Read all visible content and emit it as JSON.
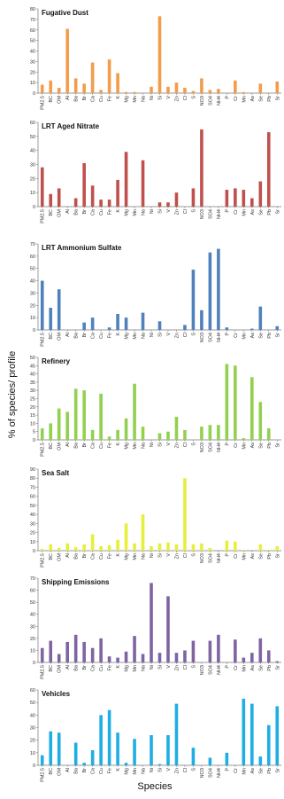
{
  "ylabel": "% of species/ profile",
  "xlabel": "Species",
  "chart_data": [
    {
      "type": "bar",
      "title": "Fugative Dust",
      "color": "#f39c4a",
      "ylim": [
        0,
        80
      ],
      "yticks": [
        0,
        10,
        20,
        30,
        40,
        50,
        60,
        70,
        80
      ],
      "categories": [
        "PM2.5",
        "BC",
        "OM",
        "Al",
        "Ba",
        "Br",
        "Ca",
        "Cu",
        "Fe",
        "K",
        "Mg",
        "Mn",
        "Na",
        "Ni",
        "Si",
        "V",
        "Zn",
        "Cl",
        "S",
        "NO3",
        "SO4",
        "NH4",
        "P",
        "Cr",
        "Mn",
        "As",
        "Se",
        "Pb",
        "Sr"
      ],
      "values": [
        8,
        12,
        5,
        61,
        14,
        9,
        29,
        3,
        32,
        19,
        1,
        1,
        0,
        6,
        73,
        6,
        10,
        5,
        2,
        14,
        3,
        4,
        0,
        12,
        1,
        0,
        9,
        0,
        11
      ]
    },
    {
      "type": "bar",
      "title": "LRT Aged Nitrate",
      "color": "#c0504d",
      "ylim": [
        0,
        60
      ],
      "yticks": [
        0,
        10,
        20,
        30,
        40,
        50,
        60
      ],
      "categories": [
        "PM2.5",
        "BC",
        "OM",
        "Al",
        "Ba",
        "Br",
        "Ca",
        "Cu",
        "Fe",
        "K",
        "Mg",
        "Mn",
        "Na",
        "Ni",
        "Si",
        "V",
        "Zn",
        "Cl",
        "S",
        "NO3",
        "SO4",
        "NH4",
        "P",
        "Cr",
        "Mn",
        "As",
        "Se",
        "Pb",
        "Sr"
      ],
      "values": [
        28,
        9,
        13,
        0,
        6,
        31,
        15,
        5,
        5,
        19,
        39,
        0,
        33,
        0,
        3,
        3,
        10,
        0,
        13,
        55,
        0,
        0,
        12,
        13,
        12,
        6,
        18,
        53,
        0
      ]
    },
    {
      "type": "bar",
      "title": "LRT Ammonium Sulfate",
      "color": "#4f81bd",
      "ylim": [
        0,
        70
      ],
      "yticks": [
        0,
        10,
        20,
        30,
        40,
        50,
        60,
        70
      ],
      "categories": [
        "PM2.5",
        "BC",
        "OM",
        "Al",
        "Ba",
        "Br",
        "Ca",
        "Cu",
        "Fe",
        "K",
        "Mg",
        "Mn",
        "Na",
        "Ni",
        "Si",
        "V",
        "Zn",
        "Cl",
        "S",
        "NO3",
        "SO4",
        "NH4",
        "P",
        "Cr",
        "Mn",
        "As",
        "Se",
        "Pb",
        "Sr"
      ],
      "values": [
        40,
        18,
        33,
        0,
        0,
        6,
        10,
        0,
        2,
        13,
        10,
        0,
        14,
        0,
        7,
        0,
        0,
        4,
        49,
        16,
        63,
        66,
        2,
        0,
        0,
        1,
        19,
        0,
        3
      ]
    },
    {
      "type": "bar",
      "title": "Refinery",
      "color": "#92d050",
      "ylim": [
        0,
        50
      ],
      "yticks": [
        0,
        5,
        10,
        15,
        20,
        25,
        30,
        35,
        40,
        45,
        50
      ],
      "categories": [
        "PM2.5",
        "BC",
        "OM",
        "Al",
        "Ba",
        "Br",
        "Ca",
        "Cu",
        "Fe",
        "K",
        "Mg",
        "Mn",
        "Na",
        "Ni",
        "Si",
        "V",
        "Zn",
        "Cl",
        "S",
        "NO3",
        "SO4",
        "NH4",
        "P",
        "Cr",
        "Mn",
        "As",
        "Se",
        "Pb",
        "Sr"
      ],
      "values": [
        7,
        10,
        19,
        17,
        31,
        30,
        6,
        28,
        2,
        6,
        13,
        34,
        8,
        0,
        4,
        5,
        14,
        6,
        0,
        8,
        9,
        9,
        46,
        45,
        1,
        38,
        23,
        7,
        0
      ]
    },
    {
      "type": "bar",
      "title": "Sea Salt",
      "color": "#e6ef3a",
      "ylim": [
        0,
        90
      ],
      "yticks": [
        0,
        10,
        20,
        30,
        40,
        50,
        60,
        70,
        80,
        90
      ],
      "categories": [
        "PM2.5",
        "BC",
        "OM",
        "Al",
        "Ba",
        "Br",
        "Ca",
        "Cu",
        "Fe",
        "K",
        "Mg",
        "Mn",
        "Na",
        "Ni",
        "Si",
        "V",
        "Zn",
        "Cl",
        "S",
        "NO3",
        "SO4",
        "NH4",
        "P",
        "Cr",
        "Mn",
        "As",
        "Se",
        "Pb",
        "Sr"
      ],
      "values": [
        2,
        7,
        3,
        8,
        4,
        7,
        18,
        5,
        6,
        12,
        30,
        8,
        40,
        5,
        8,
        9,
        7,
        80,
        7,
        8,
        3,
        0,
        11,
        10,
        1,
        0,
        7,
        1,
        5
      ]
    },
    {
      "type": "bar",
      "title": "Shipping Emissions",
      "color": "#8064a2",
      "ylim": [
        0,
        70
      ],
      "yticks": [
        0,
        10,
        20,
        30,
        40,
        50,
        60,
        70
      ],
      "categories": [
        "PM2.5",
        "BC",
        "OM",
        "Al",
        "Ba",
        "Br",
        "Ca",
        "Cu",
        "Fe",
        "K",
        "Mg",
        "Mn",
        "Na",
        "Ni",
        "Si",
        "V",
        "Zn",
        "Cl",
        "S",
        "NO3",
        "SO4",
        "NH4",
        "P",
        "Cr",
        "Mn",
        "As",
        "Se",
        "Pb",
        "Sr"
      ],
      "values": [
        12,
        18,
        7,
        17,
        23,
        17,
        12,
        20,
        5,
        4,
        9,
        22,
        7,
        66,
        8,
        55,
        8,
        10,
        18,
        0,
        18,
        23,
        0,
        19,
        4,
        8,
        20,
        10,
        1
      ]
    },
    {
      "type": "bar",
      "title": "Vehicles",
      "color": "#1eaee4",
      "ylim": [
        0,
        60
      ],
      "yticks": [
        0,
        10,
        20,
        30,
        40,
        50,
        60
      ],
      "categories": [
        "PM2.5",
        "BC",
        "OM",
        "Al",
        "Ba",
        "Br",
        "Ca",
        "Cu",
        "Fe",
        "K",
        "Mg",
        "Mn",
        "Na",
        "Ni",
        "Si",
        "V",
        "Zn",
        "Cl",
        "S",
        "NO3",
        "SO4",
        "NH4",
        "P",
        "Cr",
        "Mn",
        "As",
        "Se",
        "Pb",
        "Sr"
      ],
      "values": [
        8,
        27,
        26,
        0,
        18,
        2,
        12,
        40,
        44,
        26,
        2,
        21,
        0,
        24,
        1,
        24,
        49,
        0,
        14,
        0,
        6,
        0,
        10,
        0,
        53,
        49,
        7,
        32,
        47
      ]
    }
  ]
}
